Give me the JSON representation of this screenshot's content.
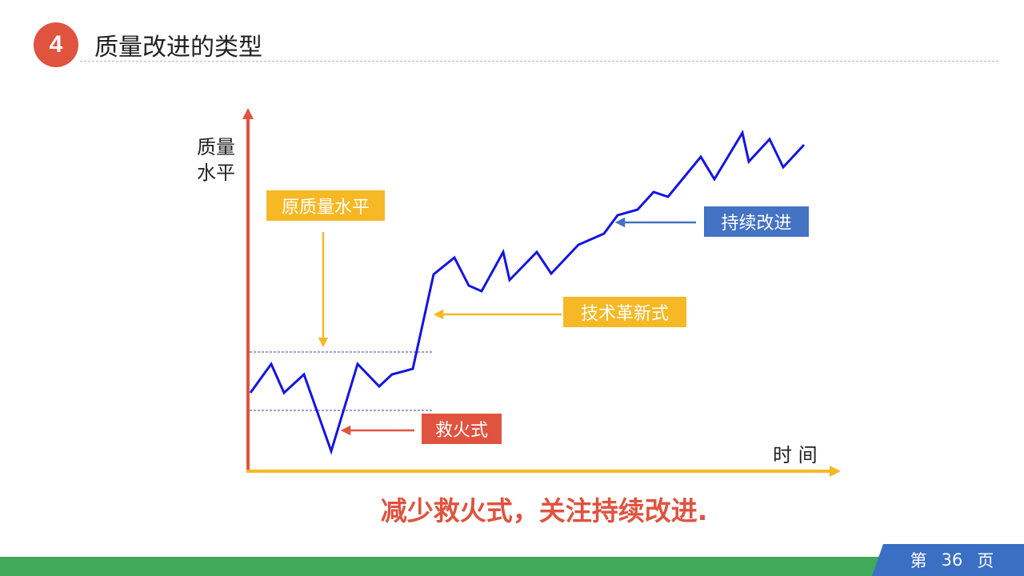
{
  "header": {
    "number": "4",
    "title": "质量改进的类型"
  },
  "diagram": {
    "y_axis_label": [
      "质量",
      "水平"
    ],
    "x_axis_label": "时 间",
    "labels": {
      "original_level": "原质量水平",
      "firefighting": "救火式",
      "innovation": "技术革新式",
      "continuous": "持续改进"
    },
    "colors": {
      "axis_y": "#e0533f",
      "axis_x": "#f6b825",
      "curve": "#1414e6",
      "guide": "#3a3ab8"
    }
  },
  "conclusion": "减少救火式，关注持续改进.",
  "footer": {
    "prefix": "第",
    "page": "36",
    "suffix": "页"
  }
}
